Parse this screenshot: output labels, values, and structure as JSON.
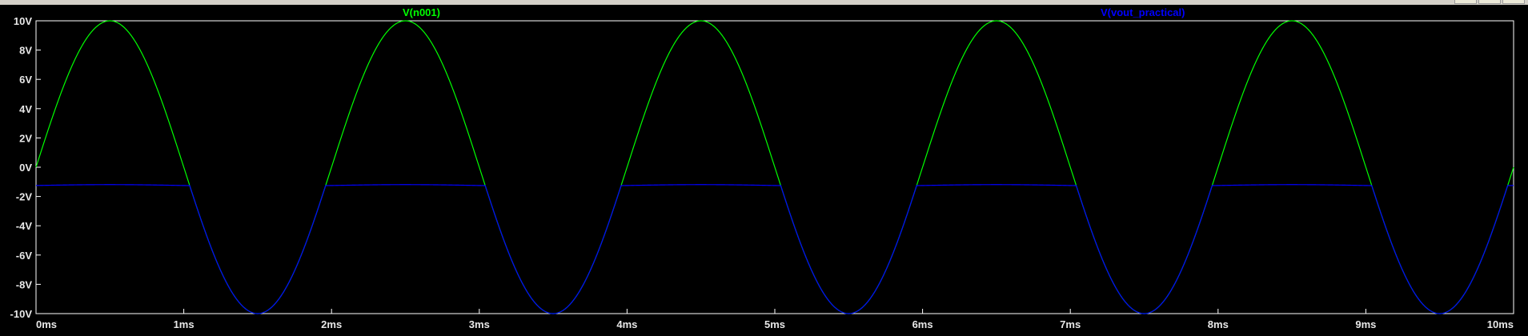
{
  "window": {
    "buttons": [
      "minimize",
      "maximize",
      "close"
    ]
  },
  "colors": {
    "background": "#000000",
    "frame": "#ffffff",
    "grid": "#404040",
    "n001": "#00ff00",
    "vout": "#0000ff",
    "text": "#e8e8e8"
  },
  "chart_data": {
    "type": "line",
    "title": "",
    "xlabel": "",
    "ylabel": "",
    "xlim": [
      0,
      10
    ],
    "ylim": [
      -10,
      10
    ],
    "x_unit": "ms",
    "y_unit": "V",
    "x_ticks": [
      "0ms",
      "1ms",
      "2ms",
      "3ms",
      "4ms",
      "5ms",
      "6ms",
      "7ms",
      "8ms",
      "9ms",
      "10ms"
    ],
    "y_ticks": [
      "10V",
      "8V",
      "6V",
      "4V",
      "2V",
      "0V",
      "-2V",
      "-4V",
      "-6V",
      "-8V",
      "-10V"
    ],
    "grid": false,
    "series": [
      {
        "name": "V(n001)",
        "color": "#00ff00",
        "amplitude": 10,
        "period_ms": 2,
        "clip_max": null
      },
      {
        "name": "V(vout_practical)",
        "color": "#0000ff",
        "amplitude": 10,
        "period_ms": 2,
        "clip_max": -1.25
      }
    ]
  }
}
